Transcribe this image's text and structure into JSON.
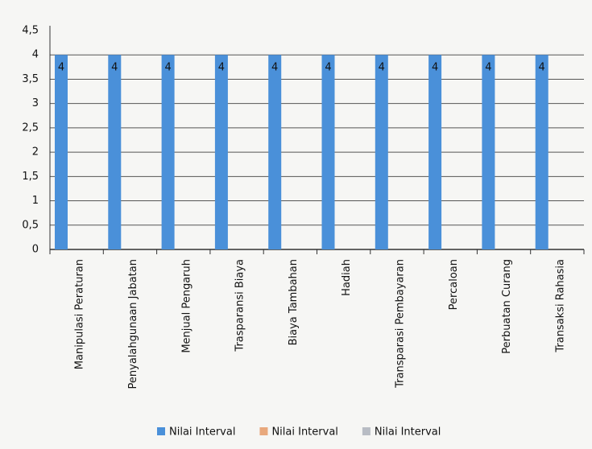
{
  "chart_data": {
    "type": "bar",
    "categories": [
      "Manipulasi Peraturan",
      "Penyalahgunaan Jabatan",
      "Menjual Pengaruh",
      "Trasparansi Biaya",
      "Biaya Tambahan",
      "Hadiah",
      "Transparasi Pembayaran",
      "Percaloan",
      "Perbuatan Curang",
      "Transaksi Rahasia"
    ],
    "series": [
      {
        "name": "Nilai Interval",
        "color": "#4a90d9",
        "values": [
          4,
          4,
          4,
          4,
          4,
          4,
          4,
          4,
          4,
          4
        ]
      },
      {
        "name": "Nilai Interval",
        "color": "#e8a87c",
        "values": [
          null,
          null,
          null,
          null,
          null,
          null,
          null,
          null,
          null,
          null
        ]
      },
      {
        "name": "Nilai Interval",
        "color": "#b8bcc4",
        "values": [
          null,
          null,
          null,
          null,
          null,
          null,
          null,
          null,
          null,
          null
        ]
      }
    ],
    "ylim": [
      0,
      4.5
    ],
    "yticks": [
      0,
      {
        "value": 0.5,
        "label": "0,5"
      },
      1,
      {
        "value": 1.5,
        "label": "1,5"
      },
      2,
      {
        "value": 2.5,
        "label": "2,5"
      },
      3,
      {
        "value": 3.5,
        "label": "3,5"
      },
      4,
      {
        "value": 4.5,
        "label": "4,5"
      }
    ],
    "grid": true,
    "legend": "bottom"
  }
}
